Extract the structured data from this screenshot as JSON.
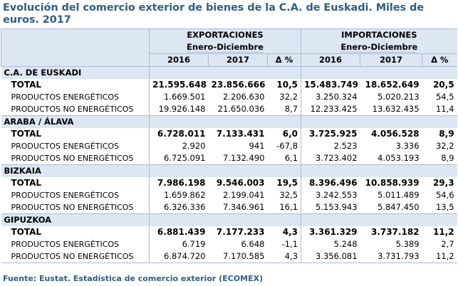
{
  "title": "Evolución del comercio exterior de bienes de la C.A. de Euskadi. Miles de euros. 2017",
  "header": {
    "exports": "EXPORTACIONES",
    "imports": "IMPORTACIONES",
    "period": "Enero-Diciembre",
    "y1": "2016",
    "y2": "2017",
    "delta": "Δ %"
  },
  "regions": [
    {
      "name": "C.A. DE EUSKADI",
      "rows": [
        {
          "label": "TOTAL",
          "e2016": "21.595.648",
          "e2017": "23.856.666",
          "ed": "10,5",
          "i2016": "15.483.749",
          "i2017": "18.652.649",
          "id": "20,5"
        },
        {
          "label": "PRODUCTOS ENERGÉTICOS",
          "e2016": "1.669.501",
          "e2017": "2.206.630",
          "ed": "32,2",
          "i2016": "3.250.324",
          "i2017": "5.020.213",
          "id": "54,5"
        },
        {
          "label": "PRODUCTOS NO ENERGÉTICOS",
          "e2016": "19.926.148",
          "e2017": "21.650.036",
          "ed": "8,7",
          "i2016": "12.233.425",
          "i2017": "13.632.435",
          "id": "11,4"
        }
      ]
    },
    {
      "name": "ARABA / ÁLAVA",
      "rows": [
        {
          "label": "TOTAL",
          "e2016": "6.728.011",
          "e2017": "7.133.431",
          "ed": "6,0",
          "i2016": "3.725.925",
          "i2017": "4.056.528",
          "id": "8,9"
        },
        {
          "label": "PRODUCTOS ENERGÉTICOS",
          "e2016": "2.920",
          "e2017": "941",
          "ed": "-67,8",
          "i2016": "2.523",
          "i2017": "3.336",
          "id": "32,2"
        },
        {
          "label": "PRODUCTOS NO ENERGÉTICOS",
          "e2016": "6.725.091",
          "e2017": "7.132.490",
          "ed": "6,1",
          "i2016": "3.723.402",
          "i2017": "4.053.193",
          "id": "8,9"
        }
      ]
    },
    {
      "name": "BIZKAIA",
      "rows": [
        {
          "label": "TOTAL",
          "e2016": "7.986.198",
          "e2017": "9.546.003",
          "ed": "19,5",
          "i2016": "8.396.496",
          "i2017": "10.858.939",
          "id": "29,3"
        },
        {
          "label": "PRODUCTOS ENERGÉTICOS",
          "e2016": "1.659.862",
          "e2017": "2.199.041",
          "ed": "32,5",
          "i2016": "3.242.553",
          "i2017": "5.011.489",
          "id": "54,6"
        },
        {
          "label": "PRODUCTOS NO ENERGÉTICOS",
          "e2016": "6.326.336",
          "e2017": "7.346.961",
          "ed": "16,1",
          "i2016": "5.153.943",
          "i2017": "5.847.450",
          "id": "13,5"
        }
      ]
    },
    {
      "name": "GIPUZKOA",
      "rows": [
        {
          "label": "TOTAL",
          "e2016": "6.881.439",
          "e2017": "7.177.233",
          "ed": "4,3",
          "i2016": "3.361.329",
          "i2017": "3.737.182",
          "id": "11,2"
        },
        {
          "label": "PRODUCTOS ENERGÉTICOS",
          "e2016": "6.719",
          "e2017": "6.648",
          "ed": "-1,1",
          "i2016": "5.248",
          "i2017": "5.389",
          "id": "2,7"
        },
        {
          "label": "PRODUCTOS NO ENERGÉTICOS",
          "e2016": "6.874.720",
          "e2017": "7.170.585",
          "ed": "4,3",
          "i2016": "3.356.081",
          "i2017": "3.731.793",
          "id": "11,2"
        }
      ]
    }
  ],
  "source": "Fuente: Eustat. Estadística de comercio exterior (ECOMEX)"
}
